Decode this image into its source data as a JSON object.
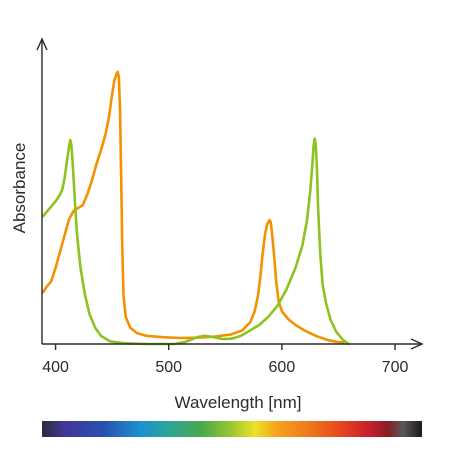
{
  "chart_data": {
    "type": "line",
    "title": "",
    "xlabel": "Wavelength [nm]",
    "ylabel": "Absorbance",
    "xlim": [
      388,
      715
    ],
    "ylim": [
      0,
      1
    ],
    "grid": false,
    "legend": "none",
    "x_ticks": [
      400,
      500,
      600,
      700
    ],
    "x_tick_labels": [
      "400",
      "500",
      "600",
      "700"
    ],
    "y_ticks": [],
    "series": [
      {
        "color": "#f39200",
        "points": [
          [
            389,
            0.19
          ],
          [
            392,
            0.21
          ],
          [
            396,
            0.23
          ],
          [
            400,
            0.28
          ],
          [
            404,
            0.34
          ],
          [
            408,
            0.4
          ],
          [
            412,
            0.46
          ],
          [
            416,
            0.49
          ],
          [
            420,
            0.5
          ],
          [
            424,
            0.51
          ],
          [
            428,
            0.55
          ],
          [
            432,
            0.6
          ],
          [
            436,
            0.66
          ],
          [
            440,
            0.71
          ],
          [
            444,
            0.77
          ],
          [
            447,
            0.83
          ],
          [
            450,
            0.92
          ],
          [
            452,
            0.97
          ],
          [
            454,
            0.995
          ],
          [
            455,
            1.0
          ],
          [
            456,
            0.98
          ],
          [
            457,
            0.85
          ],
          [
            458,
            0.6
          ],
          [
            459,
            0.35
          ],
          [
            460,
            0.18
          ],
          [
            462,
            0.1
          ],
          [
            466,
            0.06
          ],
          [
            472,
            0.04
          ],
          [
            480,
            0.03
          ],
          [
            495,
            0.025
          ],
          [
            510,
            0.022
          ],
          [
            525,
            0.023
          ],
          [
            540,
            0.027
          ],
          [
            555,
            0.035
          ],
          [
            565,
            0.05
          ],
          [
            572,
            0.08
          ],
          [
            576,
            0.12
          ],
          [
            579,
            0.18
          ],
          [
            581,
            0.25
          ],
          [
            583,
            0.33
          ],
          [
            585,
            0.4
          ],
          [
            587,
            0.44
          ],
          [
            589,
            0.455
          ],
          [
            590,
            0.45
          ],
          [
            591,
            0.42
          ],
          [
            593,
            0.33
          ],
          [
            595,
            0.23
          ],
          [
            597,
            0.16
          ],
          [
            600,
            0.12
          ],
          [
            606,
            0.09
          ],
          [
            612,
            0.07
          ],
          [
            620,
            0.05
          ],
          [
            630,
            0.03
          ],
          [
            640,
            0.015
          ],
          [
            648,
            0.008
          ],
          [
            654,
            0.005
          ]
        ]
      },
      {
        "color": "#8dc21f",
        "points": [
          [
            389,
            0.47
          ],
          [
            393,
            0.49
          ],
          [
            397,
            0.51
          ],
          [
            401,
            0.53
          ],
          [
            404,
            0.55
          ],
          [
            406,
            0.57
          ],
          [
            408,
            0.61
          ],
          [
            410,
            0.67
          ],
          [
            412,
            0.73
          ],
          [
            413,
            0.75
          ],
          [
            414,
            0.73
          ],
          [
            415,
            0.67
          ],
          [
            417,
            0.53
          ],
          [
            419,
            0.4
          ],
          [
            422,
            0.28
          ],
          [
            426,
            0.18
          ],
          [
            430,
            0.11
          ],
          [
            435,
            0.06
          ],
          [
            440,
            0.03
          ],
          [
            448,
            0.01
          ],
          [
            460,
            0.003
          ],
          [
            480,
            0.0
          ],
          [
            505,
            0.0
          ],
          [
            515,
            0.008
          ],
          [
            525,
            0.025
          ],
          [
            532,
            0.03
          ],
          [
            540,
            0.025
          ],
          [
            548,
            0.018
          ],
          [
            556,
            0.02
          ],
          [
            564,
            0.03
          ],
          [
            572,
            0.05
          ],
          [
            580,
            0.07
          ],
          [
            588,
            0.1
          ],
          [
            596,
            0.14
          ],
          [
            604,
            0.2
          ],
          [
            612,
            0.28
          ],
          [
            618,
            0.36
          ],
          [
            622,
            0.45
          ],
          [
            625,
            0.56
          ],
          [
            627,
            0.66
          ],
          [
            628,
            0.73
          ],
          [
            629,
            0.755
          ],
          [
            630,
            0.73
          ],
          [
            631,
            0.64
          ],
          [
            632,
            0.5
          ],
          [
            634,
            0.33
          ],
          [
            636,
            0.22
          ],
          [
            639,
            0.15
          ],
          [
            643,
            0.09
          ],
          [
            648,
            0.045
          ],
          [
            654,
            0.015
          ],
          [
            659,
            0.0
          ]
        ]
      }
    ],
    "spectrum_bar": {
      "stops": [
        {
          "offset": 0.0,
          "color": "#2e2b3b"
        },
        {
          "offset": 0.06,
          "color": "#40369a"
        },
        {
          "offset": 0.16,
          "color": "#2a4fae"
        },
        {
          "offset": 0.26,
          "color": "#1c92d2"
        },
        {
          "offset": 0.33,
          "color": "#2ba49a"
        },
        {
          "offset": 0.42,
          "color": "#4aa84a"
        },
        {
          "offset": 0.5,
          "color": "#9ec72e"
        },
        {
          "offset": 0.56,
          "color": "#e9e22a"
        },
        {
          "offset": 0.62,
          "color": "#f7a21b"
        },
        {
          "offset": 0.7,
          "color": "#ee7a1c"
        },
        {
          "offset": 0.78,
          "color": "#e8491f"
        },
        {
          "offset": 0.86,
          "color": "#c81f2b"
        },
        {
          "offset": 0.91,
          "color": "#8a1e26"
        },
        {
          "offset": 0.95,
          "color": "#5a5757"
        },
        {
          "offset": 1.0,
          "color": "#1a1a1a"
        }
      ]
    }
  }
}
